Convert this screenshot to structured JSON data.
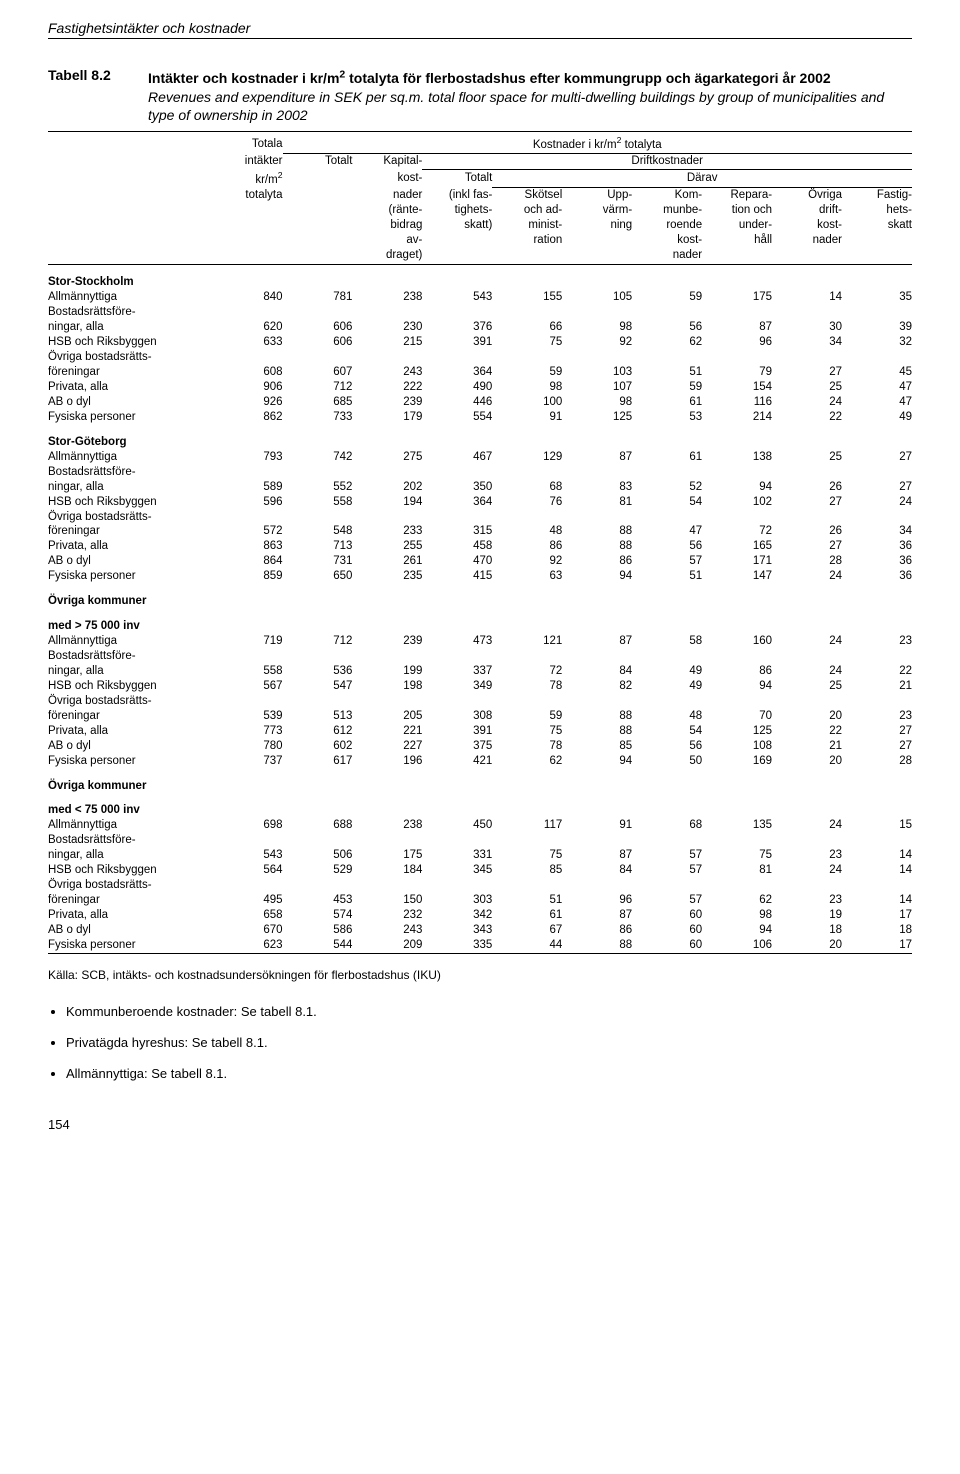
{
  "header": "Fastighetsintäkter och kostnader",
  "table_number": "Tabell 8.2",
  "title_bold_1": "Intäkter och kostnader i kr/m",
  "title_bold_sup": "2",
  "title_bold_2": " totalyta för flerbostadshus efter kommungrupp och ägarkategori år 2002",
  "title_italic": "Revenues and expenditure in SEK per sq.m. total floor space for multi-dwelling buildings by group of municipalities and type of ownership in 2002",
  "col_headers": {
    "totala": "Totala",
    "intakter": "intäkter",
    "krm2": "kr/m",
    "krm2_sup": "2",
    "totalyta": "totalyta",
    "kostnader_i": "Kostnader i kr/m",
    "kostnader_sup": "2",
    "kostnader_tot": " totalyta",
    "totalt": "Totalt",
    "kapital": "Kapital-",
    "kost": "kost-",
    "nader": "nader",
    "rante": "(ränte-",
    "bidrag": "bidrag",
    "av": "av-",
    "draget": "draget)",
    "driftkostnader": "Driftkostnader",
    "totalt2": "Totalt",
    "inklfas": "(inkl fas-",
    "tighets": "tighets-",
    "skatt": "skatt)",
    "darav": "Därav",
    "skotsel": "Skötsel",
    "ochad": "och ad-",
    "minist": "minist-",
    "ration": "ration",
    "upp": "Upp-",
    "varm": "värm-",
    "ning": "ning",
    "kom": "Kom-",
    "munbe": "munbe-",
    "roende": "roende",
    "kost2": "kost-",
    "nader2": "nader",
    "repara": "Repara-",
    "tion": "tion och",
    "under": "under-",
    "hall": "håll",
    "ovriga": "Övriga",
    "drift": "drift-",
    "kost3": "kost-",
    "nader3": "nader",
    "fastig": "Fastig-",
    "hets": "hets-",
    "skatt2": "skatt"
  },
  "groups": [
    {
      "label": "Stor-Stockholm",
      "rows": [
        {
          "cat": "Allmännyttiga",
          "v": [
            840,
            781,
            238,
            543,
            155,
            105,
            59,
            175,
            14,
            35
          ]
        },
        {
          "cat": "Bostadsrättsföre-\nningar, alla",
          "v": [
            620,
            606,
            230,
            376,
            66,
            98,
            56,
            87,
            30,
            39
          ]
        },
        {
          "cat": "HSB och Riksbyggen",
          "v": [
            633,
            606,
            215,
            391,
            75,
            92,
            62,
            96,
            34,
            32
          ]
        },
        {
          "cat": "Övriga bostadsrätts-\nföreningar",
          "v": [
            608,
            607,
            243,
            364,
            59,
            103,
            51,
            79,
            27,
            45
          ]
        },
        {
          "cat": "Privata, alla",
          "v": [
            906,
            712,
            222,
            490,
            98,
            107,
            59,
            154,
            25,
            47
          ]
        },
        {
          "cat": "AB o dyl",
          "v": [
            926,
            685,
            239,
            446,
            100,
            98,
            61,
            116,
            24,
            47
          ]
        },
        {
          "cat": "Fysiska personer",
          "v": [
            862,
            733,
            179,
            554,
            91,
            125,
            53,
            214,
            22,
            49
          ]
        }
      ]
    },
    {
      "label": "Stor-Göteborg",
      "rows": [
        {
          "cat": "Allmännyttiga",
          "v": [
            793,
            742,
            275,
            467,
            129,
            87,
            61,
            138,
            25,
            27
          ]
        },
        {
          "cat": "Bostadsrättsföre-\nningar, alla",
          "v": [
            589,
            552,
            202,
            350,
            68,
            83,
            52,
            94,
            26,
            27
          ]
        },
        {
          "cat": "HSB och Riksbyggen",
          "v": [
            596,
            558,
            194,
            364,
            76,
            81,
            54,
            102,
            27,
            24
          ]
        },
        {
          "cat": "Övriga bostadsrätts-\nföreningar",
          "v": [
            572,
            548,
            233,
            315,
            48,
            88,
            47,
            72,
            26,
            34
          ]
        },
        {
          "cat": "Privata, alla",
          "v": [
            863,
            713,
            255,
            458,
            86,
            88,
            56,
            165,
            27,
            36
          ]
        },
        {
          "cat": "AB o dyl",
          "v": [
            864,
            731,
            261,
            470,
            92,
            86,
            57,
            171,
            28,
            36
          ]
        },
        {
          "cat": "Fysiska personer",
          "v": [
            859,
            650,
            235,
            415,
            63,
            94,
            51,
            147,
            24,
            36
          ]
        }
      ]
    },
    {
      "label": "Övriga kommuner\nmed > 75 000 inv",
      "rows": [
        {
          "cat": "Allmännyttiga",
          "v": [
            719,
            712,
            239,
            473,
            121,
            87,
            58,
            160,
            24,
            23
          ]
        },
        {
          "cat": "Bostadsrättsföre-\nningar, alla",
          "v": [
            558,
            536,
            199,
            337,
            72,
            84,
            49,
            86,
            24,
            22
          ]
        },
        {
          "cat": "HSB och Riksbyggen",
          "v": [
            567,
            547,
            198,
            349,
            78,
            82,
            49,
            94,
            25,
            21
          ]
        },
        {
          "cat": "Övriga bostadsrätts-\nföreningar",
          "v": [
            539,
            513,
            205,
            308,
            59,
            88,
            48,
            70,
            20,
            23
          ]
        },
        {
          "cat": "Privata, alla",
          "v": [
            773,
            612,
            221,
            391,
            75,
            88,
            54,
            125,
            22,
            27
          ]
        },
        {
          "cat": "AB o dyl",
          "v": [
            780,
            602,
            227,
            375,
            78,
            85,
            56,
            108,
            21,
            27
          ]
        },
        {
          "cat": "Fysiska personer",
          "v": [
            737,
            617,
            196,
            421,
            62,
            94,
            50,
            169,
            20,
            28
          ]
        }
      ]
    },
    {
      "label": "Övriga kommuner\nmed < 75 000 inv",
      "rows": [
        {
          "cat": "Allmännyttiga",
          "v": [
            698,
            688,
            238,
            450,
            117,
            91,
            68,
            135,
            24,
            15
          ]
        },
        {
          "cat": "Bostadsrättsföre-\nningar, alla",
          "v": [
            543,
            506,
            175,
            331,
            75,
            87,
            57,
            75,
            23,
            14
          ]
        },
        {
          "cat": "HSB och Riksbyggen",
          "v": [
            564,
            529,
            184,
            345,
            85,
            84,
            57,
            81,
            24,
            14
          ]
        },
        {
          "cat": "Övriga bostadsrätts-\nföreningar",
          "v": [
            495,
            453,
            150,
            303,
            51,
            96,
            57,
            62,
            23,
            14
          ]
        },
        {
          "cat": "Privata, alla",
          "v": [
            658,
            574,
            232,
            342,
            61,
            87,
            60,
            98,
            19,
            17
          ]
        },
        {
          "cat": "AB o dyl",
          "v": [
            670,
            586,
            243,
            343,
            67,
            86,
            60,
            94,
            18,
            18
          ]
        },
        {
          "cat": "Fysiska personer",
          "v": [
            623,
            544,
            209,
            335,
            44,
            88,
            60,
            106,
            20,
            17
          ]
        }
      ]
    }
  ],
  "source": "Källa: SCB, intäkts- och kostnadsundersökningen för flerbostadshus (IKU)",
  "notes": [
    "Kommunberoende kostnader: Se tabell 8.1.",
    "Privatägda hyreshus: Se tabell 8.1.",
    "Allmännyttiga: Se tabell 8.1."
  ],
  "page": "154"
}
